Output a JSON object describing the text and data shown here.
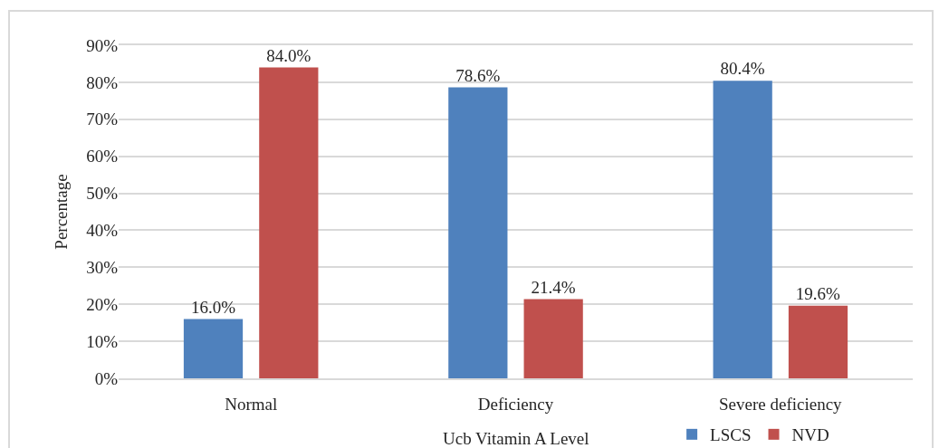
{
  "chart_data": {
    "type": "bar",
    "xlabel": "Ucb Vitamin A Level",
    "ylabel": "Percentage",
    "categories": [
      "Normal",
      "Deficiency",
      "Severe deficiency"
    ],
    "series": [
      {
        "name": "LSCS",
        "color": "#4f81bd",
        "values": [
          16.0,
          78.6,
          80.4
        ],
        "value_labels": [
          "16.0%",
          "78.6%",
          "80.4%"
        ]
      },
      {
        "name": "NVD",
        "color": "#c0504d",
        "values": [
          84.0,
          21.4,
          19.6
        ],
        "value_labels": [
          "84.0%",
          "21.4%",
          "19.6%"
        ]
      }
    ],
    "ylim": [
      0,
      90
    ],
    "yticks": [
      {
        "value": 0,
        "label": "0%"
      },
      {
        "value": 10,
        "label": "10%"
      },
      {
        "value": 20,
        "label": "20%"
      },
      {
        "value": 30,
        "label": "30%"
      },
      {
        "value": 40,
        "label": "40%"
      },
      {
        "value": 50,
        "label": "50%"
      },
      {
        "value": 60,
        "label": "60%"
      },
      {
        "value": 70,
        "label": "70%"
      },
      {
        "value": 80,
        "label": "80%"
      },
      {
        "value": 90,
        "label": "90%"
      }
    ],
    "grid": "y",
    "legend": "bottom"
  }
}
